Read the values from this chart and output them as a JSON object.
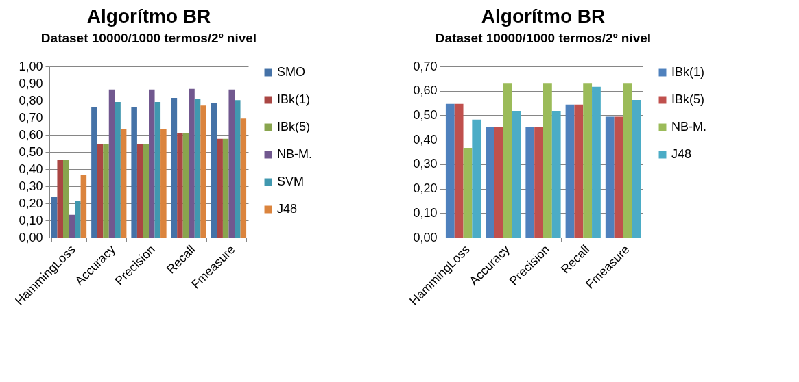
{
  "chart_data": [
    {
      "type": "bar",
      "title": "Algorítmo BR",
      "subtitle": "Dataset 10000/1000 termos/2º nível",
      "categories": [
        "HammingLoss",
        "Accuracy",
        "Precision",
        "Recall",
        "Fmeasure"
      ],
      "series": [
        {
          "name": "SMO",
          "color": "#4572a7",
          "values": [
            0.236,
            0.763,
            0.763,
            0.816,
            0.788
          ]
        },
        {
          "name": "IBk(1)",
          "color": "#aa4643",
          "values": [
            0.452,
            0.547,
            0.547,
            0.612,
            0.577
          ]
        },
        {
          "name": "IBk(5)",
          "color": "#89a54e",
          "values": [
            0.452,
            0.547,
            0.547,
            0.612,
            0.577
          ]
        },
        {
          "name": "NB-M.",
          "color": "#71588f",
          "values": [
            0.133,
            0.865,
            0.865,
            0.869,
            0.865
          ]
        },
        {
          "name": "SVM",
          "color": "#4198af",
          "values": [
            0.216,
            0.792,
            0.792,
            0.811,
            0.803
          ]
        },
        {
          "name": "J48",
          "color": "#db843d",
          "values": [
            0.367,
            0.632,
            0.632,
            0.771,
            0.695
          ]
        }
      ],
      "ylim": [
        0,
        1
      ],
      "yticks": [
        {
          "value": 0,
          "label": "0,00"
        },
        {
          "value": 0.1,
          "label": "0,10"
        },
        {
          "value": 0.2,
          "label": "0,20"
        },
        {
          "value": 0.3,
          "label": "0,30"
        },
        {
          "value": 0.4,
          "label": "0,40"
        },
        {
          "value": 0.5,
          "label": "0,50"
        },
        {
          "value": 0.6,
          "label": "0,60"
        },
        {
          "value": 0.7,
          "label": "0,70"
        },
        {
          "value": 0.8,
          "label": "0,80"
        },
        {
          "value": 0.9,
          "label": "0,90"
        },
        {
          "value": 1,
          "label": "1,00"
        }
      ],
      "grid": "y",
      "legend": "right"
    },
    {
      "type": "bar",
      "title": "Algorítmo BR",
      "subtitle": "Dataset 10000/1000 termos/2º nível",
      "categories": [
        "HammingLoss",
        "Accuracy",
        "Precision",
        "Recall",
        "Fmeasure"
      ],
      "series": [
        {
          "name": "IBk(1)",
          "color": "#4f81bd",
          "values": [
            0.547,
            0.452,
            0.452,
            0.544,
            0.494
          ]
        },
        {
          "name": "IBk(5)",
          "color": "#c0504d",
          "values": [
            0.547,
            0.452,
            0.452,
            0.544,
            0.494
          ]
        },
        {
          "name": "NB-M.",
          "color": "#9bbb59",
          "values": [
            0.367,
            0.632,
            0.632,
            0.632,
            0.632
          ]
        },
        {
          "name": "J48",
          "color": "#4bacc6",
          "values": [
            0.482,
            0.518,
            0.518,
            0.617,
            0.563
          ]
        }
      ],
      "ylim": [
        0,
        0.7
      ],
      "yticks": [
        {
          "value": 0,
          "label": "0,00"
        },
        {
          "value": 0.1,
          "label": "0,10"
        },
        {
          "value": 0.2,
          "label": "0,20"
        },
        {
          "value": 0.3,
          "label": "0,30"
        },
        {
          "value": 0.4,
          "label": "0,40"
        },
        {
          "value": 0.5,
          "label": "0,50"
        },
        {
          "value": 0.6,
          "label": "0,60"
        },
        {
          "value": 0.7,
          "label": "0,70"
        }
      ],
      "grid": "y",
      "legend": "right"
    }
  ]
}
